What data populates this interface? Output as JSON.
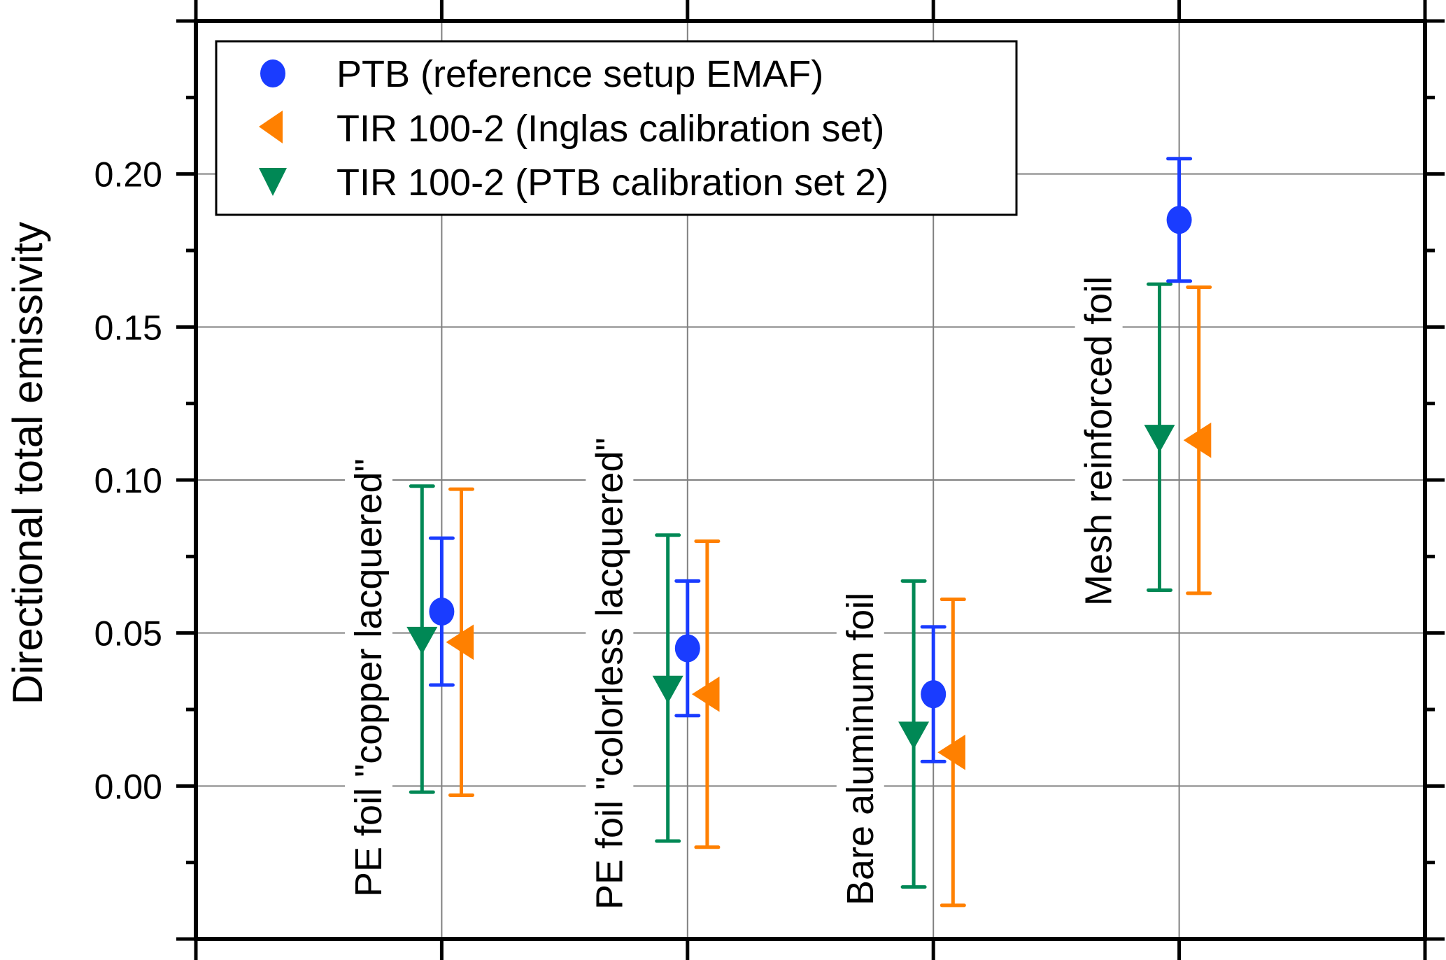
{
  "chart_data": {
    "type": "scatter",
    "title": "",
    "xlabel": "",
    "ylabel": "Directional total emissivity",
    "xlim": [
      0,
      5
    ],
    "ylim": [
      -0.05,
      0.25
    ],
    "yticks": [
      0.0,
      0.05,
      0.1,
      0.15,
      0.2
    ],
    "ytick_labels": [
      "0.00",
      "0.05",
      "0.10",
      "0.15",
      "0.20"
    ],
    "yminor_step": 0.025,
    "xticks": [
      0,
      1,
      2,
      3,
      4,
      5
    ],
    "grid": true,
    "legend_position": "top-left",
    "categories": [
      "PE foil \"copper lacquered\"",
      "PE foil \"colorless lacquered\"",
      "Bare aluminum foil",
      "Mesh reinforced foil"
    ],
    "series": [
      {
        "name": "PTB (reference setup EMAF)",
        "marker": "circle",
        "color": "#1a3cff",
        "x_offset": 0.0,
        "values": [
          0.057,
          0.045,
          0.03,
          0.185
        ],
        "err_low": [
          0.033,
          0.023,
          0.008,
          0.165
        ],
        "err_high": [
          0.081,
          0.067,
          0.052,
          0.205
        ]
      },
      {
        "name": "TIR 100-2 (Inglas calibration set)",
        "marker": "triangle-left",
        "color": "#ff8000",
        "x_offset": 0.08,
        "values": [
          0.047,
          0.03,
          0.011,
          0.113
        ],
        "err_low": [
          -0.003,
          -0.02,
          -0.039,
          0.063
        ],
        "err_high": [
          0.097,
          0.08,
          0.061,
          0.163
        ]
      },
      {
        "name": "TIR 100-2 (PTB calibration set 2)",
        "marker": "triangle-down",
        "color": "#008855",
        "x_offset": -0.08,
        "values": [
          0.048,
          0.032,
          0.017,
          0.114
        ],
        "err_low": [
          -0.002,
          -0.018,
          -0.033,
          0.064
        ],
        "err_high": [
          0.098,
          0.082,
          0.067,
          0.164
        ]
      }
    ]
  }
}
